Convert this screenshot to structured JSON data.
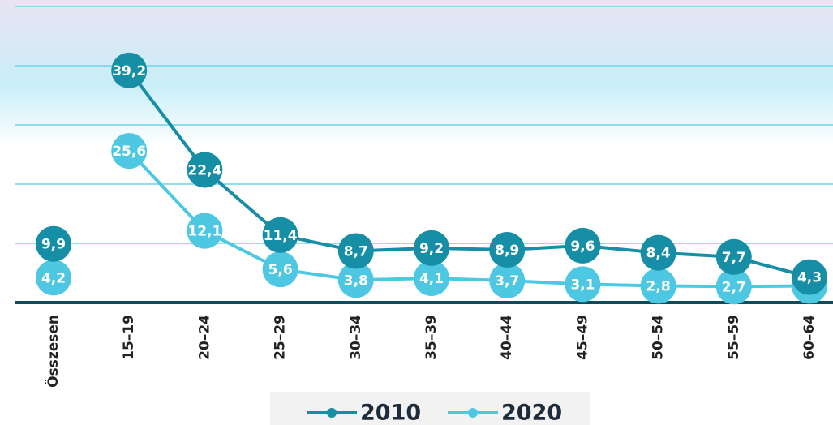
{
  "chart_data": {
    "type": "line",
    "categories": [
      "Összesen",
      "15–19",
      "20–24",
      "25–29",
      "30–34",
      "35–39",
      "40–44",
      "45–49",
      "50–54",
      "55–59",
      "60–64"
    ],
    "series": [
      {
        "name": "2010",
        "color": "#158ea6",
        "values": [
          9.9,
          39.2,
          22.4,
          11.4,
          8.7,
          9.2,
          8.9,
          9.6,
          8.4,
          7.7,
          4.3
        ],
        "value_labels": [
          "9,9",
          "39,2",
          "22,4",
          "11,4",
          "8,7",
          "9,2",
          "8,9",
          "9,6",
          "8,4",
          "7,7",
          "4,3"
        ]
      },
      {
        "name": "2020",
        "color": "#4ec8e2",
        "values": [
          4.2,
          25.6,
          12.1,
          5.6,
          3.8,
          4.1,
          3.7,
          3.1,
          2.8,
          2.7,
          2.8
        ],
        "value_labels": [
          "4,2",
          "25,6",
          "12,1",
          "5,6",
          "3,8",
          "4,1",
          "3,7",
          "3,1",
          "2,8",
          "2,7",
          "2,8"
        ]
      }
    ],
    "ylim": [
      0,
      50
    ],
    "yticks": [
      0,
      10,
      20,
      30,
      40,
      50
    ],
    "grid": true
  }
}
